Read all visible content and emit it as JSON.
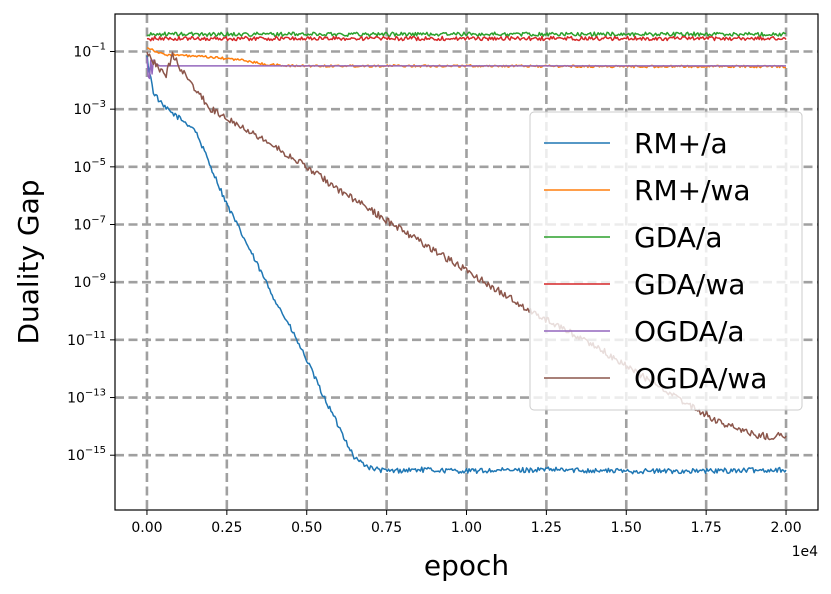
{
  "chart_data": {
    "type": "line",
    "title": "",
    "xlabel": "epoch",
    "ylabel": "Duality Gap",
    "x_offset_label": "1e4",
    "xlim": [
      -0.1,
      2.1
    ],
    "ylim_log10": [
      -16.9,
      0.3
    ],
    "x_ticks": [
      {
        "value": 0.0,
        "label": "0.00"
      },
      {
        "value": 0.25,
        "label": "0.25"
      },
      {
        "value": 0.5,
        "label": "0.50"
      },
      {
        "value": 0.75,
        "label": "0.75"
      },
      {
        "value": 1.0,
        "label": "1.00"
      },
      {
        "value": 1.25,
        "label": "1.25"
      },
      {
        "value": 1.5,
        "label": "1.50"
      },
      {
        "value": 1.75,
        "label": "1.75"
      },
      {
        "value": 2.0,
        "label": "2.00"
      }
    ],
    "y_ticks": [
      {
        "exp": -1,
        "base": "10",
        "sup": "−1"
      },
      {
        "exp": -3,
        "base": "10",
        "sup": "−3"
      },
      {
        "exp": -5,
        "base": "10",
        "sup": "−5"
      },
      {
        "exp": -7,
        "base": "10",
        "sup": "−7"
      },
      {
        "exp": -9,
        "base": "10",
        "sup": "−9"
      },
      {
        "exp": -11,
        "base": "10",
        "sup": "−11"
      },
      {
        "exp": -13,
        "base": "10",
        "sup": "−13"
      },
      {
        "exp": -15,
        "base": "10",
        "sup": "−15"
      }
    ],
    "grid": true,
    "legend_position": "center-right",
    "series": [
      {
        "name": "RM+/a",
        "color": "#1f77b4",
        "noise": 0.09,
        "points": [
          [
            0.0,
            -1.2
          ],
          [
            0.01,
            -1.8
          ],
          [
            0.02,
            -2.4
          ],
          [
            0.05,
            -2.9
          ],
          [
            0.1,
            -3.3
          ],
          [
            0.15,
            -3.7
          ],
          [
            0.2,
            -5.0
          ],
          [
            0.25,
            -6.3
          ],
          [
            0.3,
            -7.4
          ],
          [
            0.35,
            -8.5
          ],
          [
            0.4,
            -9.6
          ],
          [
            0.45,
            -10.6
          ],
          [
            0.5,
            -11.7
          ],
          [
            0.55,
            -12.9
          ],
          [
            0.6,
            -14.0
          ],
          [
            0.65,
            -15.1
          ],
          [
            0.7,
            -15.45
          ],
          [
            0.75,
            -15.55
          ],
          [
            0.85,
            -15.5
          ],
          [
            1.0,
            -15.55
          ],
          [
            1.25,
            -15.5
          ],
          [
            1.5,
            -15.55
          ],
          [
            1.75,
            -15.55
          ],
          [
            2.0,
            -15.5
          ]
        ]
      },
      {
        "name": "RM+/wa",
        "color": "#ff7f0e",
        "noise": 0.04,
        "points": [
          [
            0.0,
            -0.85
          ],
          [
            0.05,
            -1.1
          ],
          [
            0.2,
            -1.2
          ],
          [
            0.3,
            -1.3
          ],
          [
            0.37,
            -1.45
          ],
          [
            0.45,
            -1.5
          ],
          [
            1.0,
            -1.5
          ],
          [
            1.5,
            -1.52
          ],
          [
            2.0,
            -1.52
          ]
        ]
      },
      {
        "name": "GDA/a",
        "color": "#2ca02c",
        "noise": 0.07,
        "points": [
          [
            0.0,
            -0.45
          ],
          [
            0.02,
            -0.4
          ],
          [
            1.0,
            -0.4
          ],
          [
            2.0,
            -0.4
          ]
        ]
      },
      {
        "name": "GDA/wa",
        "color": "#d62728",
        "noise": 0.07,
        "points": [
          [
            0.0,
            -0.6
          ],
          [
            0.02,
            -0.55
          ],
          [
            1.0,
            -0.55
          ],
          [
            2.0,
            -0.55
          ]
        ]
      },
      {
        "name": "OGDA/a",
        "color": "#9467bd",
        "noise": 0.0,
        "points": [
          [
            0.0,
            -1.2
          ],
          [
            0.003,
            -2.1
          ],
          [
            0.006,
            -1.4
          ],
          [
            0.009,
            -2.2
          ],
          [
            0.012,
            -1.3
          ],
          [
            0.015,
            -1.9
          ],
          [
            0.02,
            -1.3
          ],
          [
            0.025,
            -1.4
          ],
          [
            0.04,
            -1.5
          ],
          [
            0.1,
            -1.5
          ],
          [
            1.0,
            -1.5
          ],
          [
            2.0,
            -1.5
          ]
        ]
      },
      {
        "name": "OGDA/wa",
        "color": "#8c564b",
        "noise": 0.12,
        "points": [
          [
            0.0,
            -1.0
          ],
          [
            0.03,
            -1.5
          ],
          [
            0.06,
            -1.8
          ],
          [
            0.08,
            -1.1
          ],
          [
            0.1,
            -1.5
          ],
          [
            0.15,
            -2.3
          ],
          [
            0.2,
            -3.0
          ],
          [
            0.3,
            -3.6
          ],
          [
            0.4,
            -4.3
          ],
          [
            0.5,
            -5.0
          ],
          [
            0.6,
            -5.8
          ],
          [
            0.7,
            -6.5
          ],
          [
            0.8,
            -7.2
          ],
          [
            0.9,
            -7.9
          ],
          [
            1.0,
            -8.6
          ],
          [
            1.1,
            -9.3
          ],
          [
            1.2,
            -10.0
          ],
          [
            1.3,
            -10.6
          ],
          [
            1.4,
            -11.2
          ],
          [
            1.5,
            -11.9
          ],
          [
            1.6,
            -12.6
          ],
          [
            1.7,
            -13.3
          ],
          [
            1.8,
            -13.9
          ],
          [
            1.9,
            -14.3
          ],
          [
            1.95,
            -14.35
          ],
          [
            2.0,
            -14.3
          ]
        ]
      }
    ]
  }
}
